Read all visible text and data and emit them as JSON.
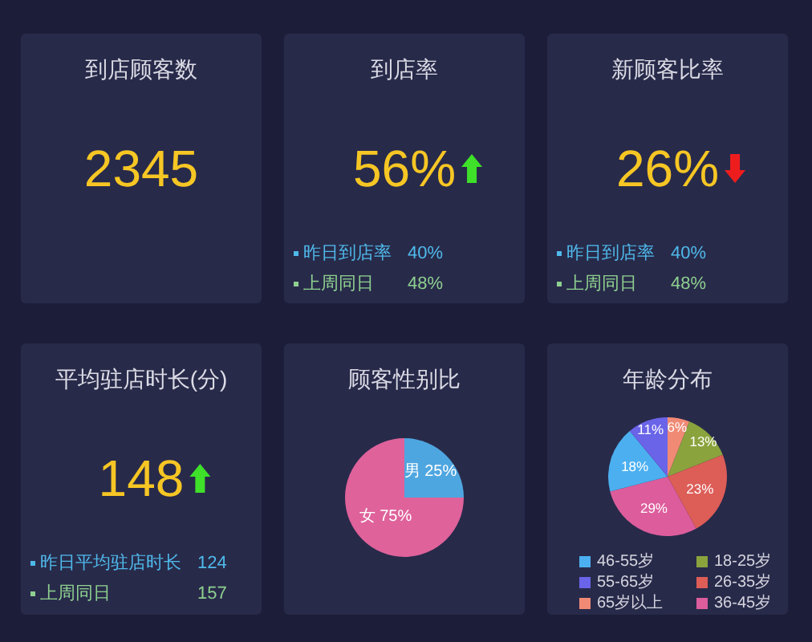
{
  "chart_data": [
    {
      "type": "other",
      "title": "到店顾客数",
      "annotations": [
        "2345"
      ]
    },
    {
      "type": "other",
      "title": "到店率",
      "annotations": [
        "56%",
        "昨日到店率",
        "40%",
        "上周同日",
        "48%"
      ]
    },
    {
      "type": "other",
      "title": "新顾客比率",
      "annotations": [
        "26%",
        "昨日到店率",
        "40%",
        "上周同日",
        "48%"
      ]
    },
    {
      "type": "other",
      "title": "平均驻店时长(分)",
      "annotations": [
        "148",
        "昨日平均驻店时长",
        "124",
        "上周同日",
        "157"
      ]
    },
    {
      "type": "pie",
      "title": "顾客性别比",
      "categories": [
        "男",
        "女"
      ],
      "values": [
        25,
        75
      ],
      "colors": [
        "#4ea6e0",
        "#df629b"
      ],
      "value_labels": [
        "25%",
        "75%"
      ]
    },
    {
      "type": "pie",
      "title": "年龄分布",
      "categories": [
        "65岁以上",
        "18-25岁",
        "26-35岁",
        "36-45岁",
        "46-55岁",
        "55-65岁"
      ],
      "values": [
        6,
        13,
        23,
        29,
        18,
        11
      ],
      "colors": [
        "#f08a75",
        "#8aa33d",
        "#dd5d57",
        "#dd5d9c",
        "#4cb0f0",
        "#6a64e8"
      ],
      "value_labels": [
        "6%",
        "13%",
        "23%",
        "29%",
        "18%",
        "11%"
      ],
      "legend": "bottom"
    }
  ]
}
